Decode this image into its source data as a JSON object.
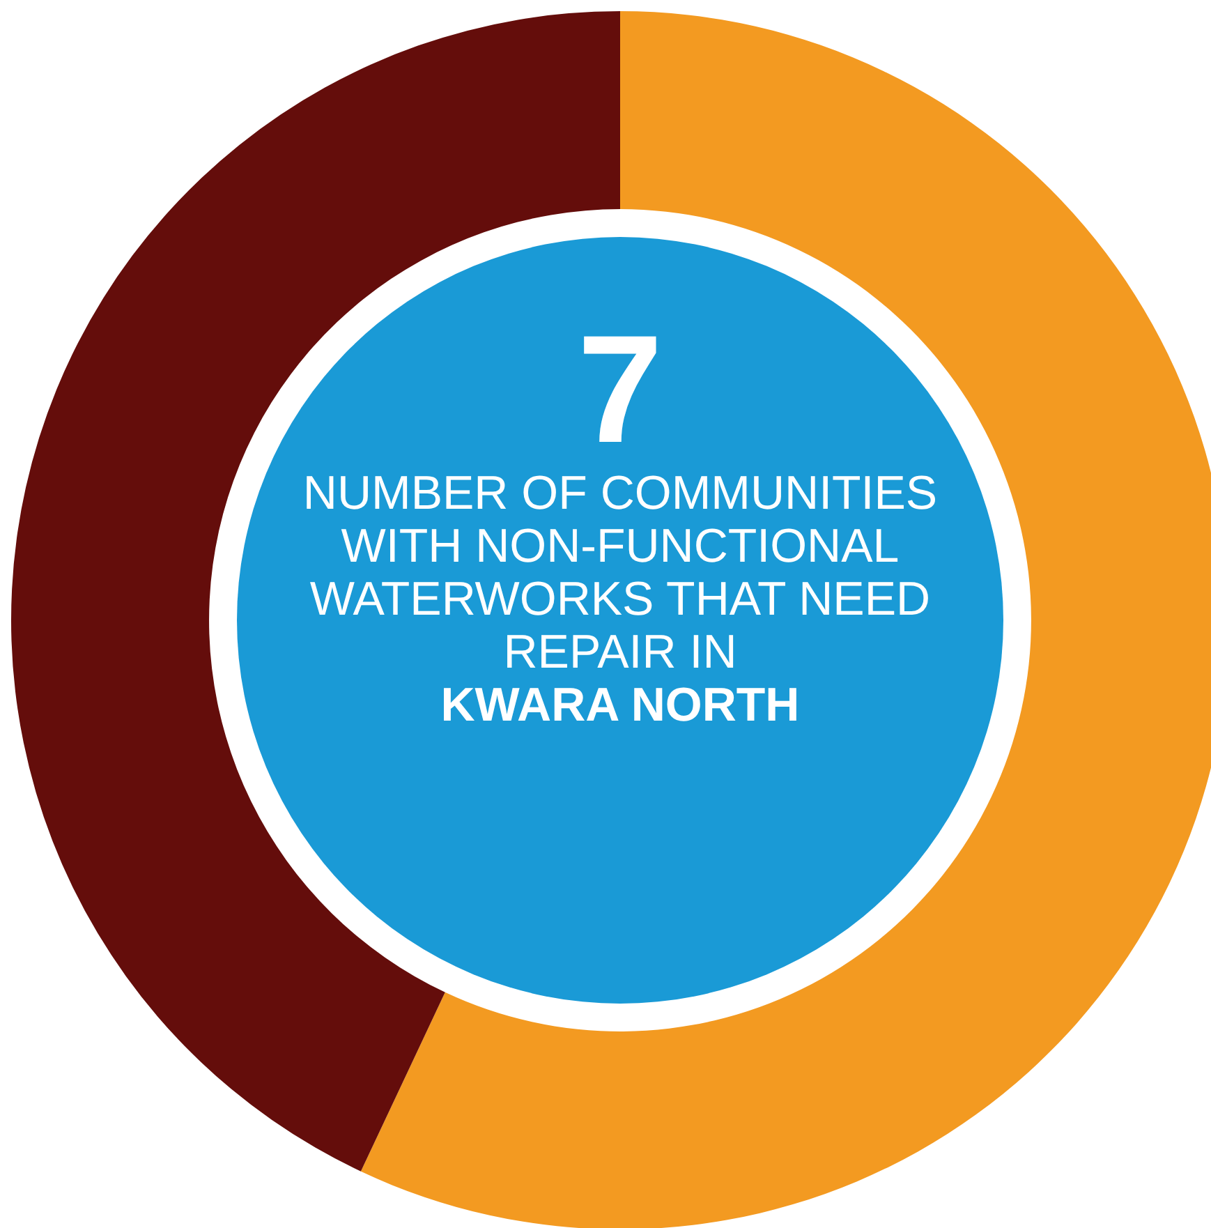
{
  "chart_data": {
    "type": "donut",
    "categories": [
      null,
      null
    ],
    "values": [
      57,
      43
    ],
    "colors": [
      "#f39a21",
      "#640d0b"
    ],
    "legend": false,
    "annotations": [
      "7",
      "NUMBER OF COMMUNITIES WITH NON-FUNCTIONAL WATERWORKS THAT NEED REPAIR IN",
      "KWARA NORTH"
    ]
  }
}
